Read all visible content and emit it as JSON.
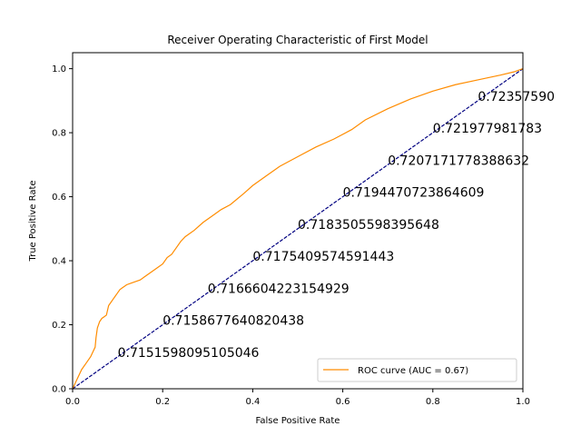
{
  "chart_data": {
    "type": "line",
    "title": "Receiver Operating Characteristic of First Model",
    "xlabel": "False Positive Rate",
    "ylabel": "True Positive Rate",
    "xlim": [
      0.0,
      1.0
    ],
    "ylim": [
      0.0,
      1.05
    ],
    "xticks": [
      "0.0",
      "0.2",
      "0.4",
      "0.6",
      "0.8",
      "1.0"
    ],
    "yticks": [
      "0.0",
      "0.2",
      "0.4",
      "0.6",
      "0.8",
      "1.0"
    ],
    "grid": false,
    "legend_position": "lower-right",
    "series": [
      {
        "name": "ROC curve (AUC = 0.67)",
        "color": "#ff8c00",
        "style": "solid",
        "x": [
          0.0,
          0.01,
          0.02,
          0.03,
          0.04,
          0.05,
          0.052,
          0.055,
          0.06,
          0.065,
          0.07,
          0.075,
          0.08,
          0.085,
          0.09,
          0.1,
          0.105,
          0.11,
          0.12,
          0.13,
          0.14,
          0.15,
          0.16,
          0.18,
          0.2,
          0.21,
          0.22,
          0.23,
          0.24,
          0.25,
          0.27,
          0.29,
          0.31,
          0.33,
          0.35,
          0.38,
          0.4,
          0.43,
          0.46,
          0.5,
          0.54,
          0.58,
          0.62,
          0.65,
          0.7,
          0.75,
          0.8,
          0.85,
          0.9,
          0.95,
          0.98,
          1.0
        ],
        "y": [
          0.0,
          0.03,
          0.06,
          0.08,
          0.1,
          0.13,
          0.16,
          0.19,
          0.21,
          0.22,
          0.225,
          0.23,
          0.26,
          0.27,
          0.28,
          0.3,
          0.31,
          0.315,
          0.325,
          0.33,
          0.335,
          0.34,
          0.35,
          0.37,
          0.39,
          0.41,
          0.42,
          0.44,
          0.46,
          0.475,
          0.495,
          0.52,
          0.54,
          0.56,
          0.575,
          0.61,
          0.635,
          0.665,
          0.695,
          0.725,
          0.755,
          0.78,
          0.81,
          0.84,
          0.875,
          0.905,
          0.93,
          0.95,
          0.965,
          0.98,
          0.99,
          1.0
        ]
      },
      {
        "name": "",
        "color": "#000080",
        "style": "dashed",
        "x": [
          0.0,
          1.0
        ],
        "y": [
          0.0,
          1.0
        ]
      }
    ],
    "annotations": [
      {
        "text": "0.7151598095105046",
        "x": 0.1,
        "y": 0.1
      },
      {
        "text": "0.7158677640820438",
        "x": 0.2,
        "y": 0.2
      },
      {
        "text": "0.7166604223154929",
        "x": 0.3,
        "y": 0.3
      },
      {
        "text": "0.7175409574591443",
        "x": 0.4,
        "y": 0.4
      },
      {
        "text": "0.7183505598395648",
        "x": 0.5,
        "y": 0.5
      },
      {
        "text": "0.7194470723864609",
        "x": 0.6,
        "y": 0.6
      },
      {
        "text": "0.7207171778388632",
        "x": 0.7,
        "y": 0.7
      },
      {
        "text": "0.721977981783",
        "x": 0.8,
        "y": 0.8
      },
      {
        "text": "0.72357590",
        "x": 0.9,
        "y": 0.9
      }
    ]
  }
}
